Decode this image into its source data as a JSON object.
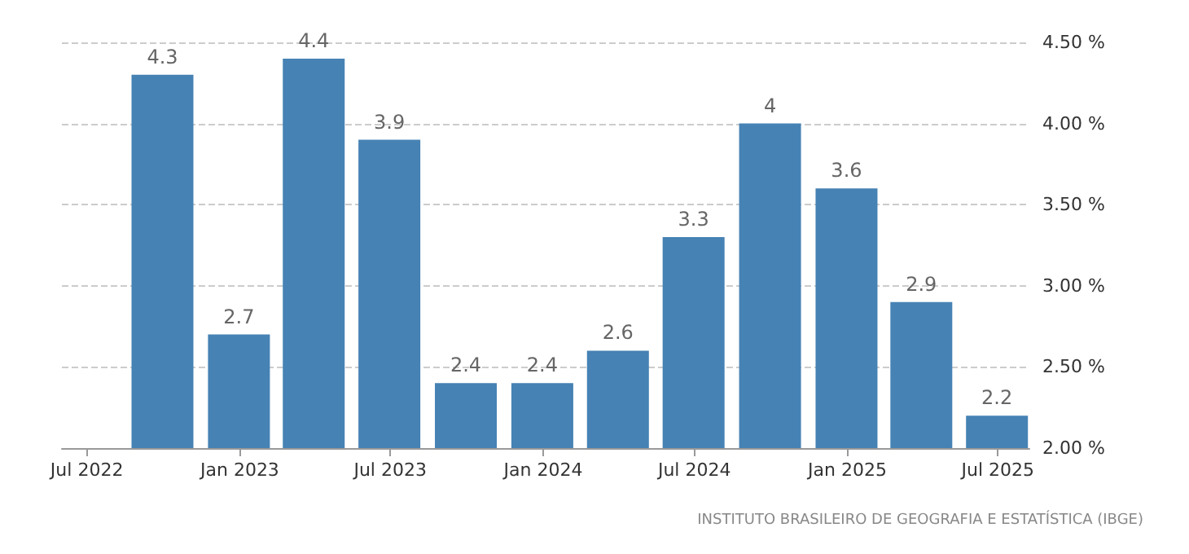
{
  "chart_data": {
    "type": "bar",
    "x": [
      "2022-09-30",
      "2022-12-31",
      "2023-03-31",
      "2023-06-30",
      "2023-09-30",
      "2023-12-31",
      "2024-03-31",
      "2024-06-30",
      "2024-09-30",
      "2024-12-31",
      "2025-03-31",
      "2025-06-30"
    ],
    "values": [
      4.3,
      2.7,
      4.4,
      3.9,
      2.4,
      2.4,
      2.6,
      3.3,
      4,
      3.6,
      2.9,
      2.2
    ],
    "color": "#4682b4",
    "data_labels": true,
    "xlim": [
      "2022-06-01",
      "2025-08-08"
    ],
    "xticks": [
      {
        "value": "2022-07-01",
        "label": "Jul 2022"
      },
      {
        "value": "2023-01-01",
        "label": "Jan 2023"
      },
      {
        "value": "2023-07-01",
        "label": "Jul 2023"
      },
      {
        "value": "2024-01-01",
        "label": "Jan 2024"
      },
      {
        "value": "2024-07-01",
        "label": "Jul 2024"
      },
      {
        "value": "2025-01-01",
        "label": "Jan 2025"
      },
      {
        "value": "2025-07-01",
        "label": "Jul 2025"
      }
    ],
    "ylim": [
      2,
      4.5
    ],
    "yticks": [
      {
        "value": 2,
        "label": "2.00 %"
      },
      {
        "value": 2.5,
        "label": "2.50 %"
      },
      {
        "value": 3,
        "label": "3.00 %"
      },
      {
        "value": 3.5,
        "label": "3.50 %"
      },
      {
        "value": 4,
        "label": "4.00 %"
      },
      {
        "value": 4.5,
        "label": "4.50 %"
      }
    ],
    "grid": "y",
    "annotations": [
      "INSTITUTO BRASILEIRO DE GEOGRAFIA E ESTATÍSTICA (IBGE)"
    ]
  }
}
